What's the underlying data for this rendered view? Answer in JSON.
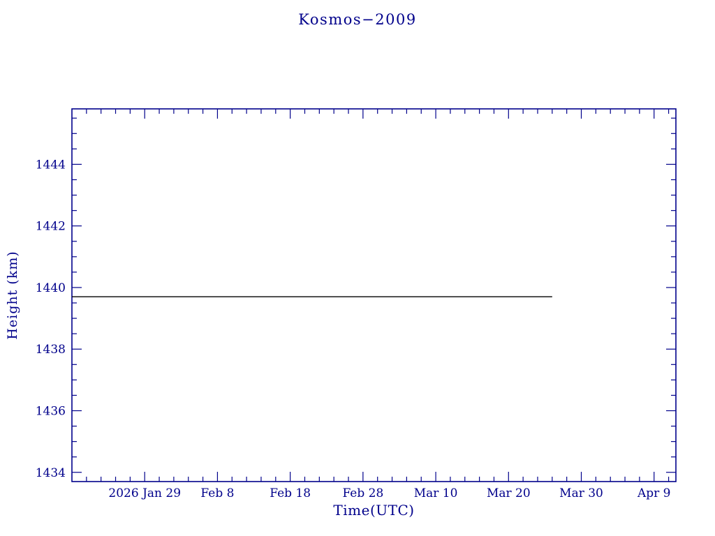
{
  "chart_data": {
    "type": "line",
    "title": "Kosmos−2009",
    "xlabel": "Time(UTC)",
    "ylabel": "Height (km)",
    "x_unit": "days since 2026 Jan 19 (UTC)",
    "xlim": [
      0,
      83
    ],
    "ylim": [
      1433.7,
      1445.8
    ],
    "grid": false,
    "legend_position": "none",
    "x_ticks": [
      {
        "pos": 10,
        "label": "2026 Jan 29"
      },
      {
        "pos": 20,
        "label": "Feb 8"
      },
      {
        "pos": 30,
        "label": "Feb 18"
      },
      {
        "pos": 40,
        "label": "Feb 28"
      },
      {
        "pos": 50,
        "label": "Mar 10"
      },
      {
        "pos": 60,
        "label": "Mar 20"
      },
      {
        "pos": 70,
        "label": "Mar 30"
      },
      {
        "pos": 80,
        "label": "Apr 9"
      }
    ],
    "x_minor_step": 2,
    "y_ticks": [
      {
        "pos": 1434,
        "label": "1434"
      },
      {
        "pos": 1436,
        "label": "1436"
      },
      {
        "pos": 1438,
        "label": "1438"
      },
      {
        "pos": 1440,
        "label": "1440"
      },
      {
        "pos": 1442,
        "label": "1442"
      },
      {
        "pos": 1444,
        "label": "1444"
      }
    ],
    "y_minor_step": 0.5,
    "series": [
      {
        "name": "height",
        "color": "#000000",
        "points": [
          [
            0,
            1439.7
          ],
          [
            66,
            1439.7
          ]
        ]
      }
    ],
    "colors": {
      "frame": "#00008B",
      "text": "#00008B",
      "background": "#ffffff"
    }
  }
}
